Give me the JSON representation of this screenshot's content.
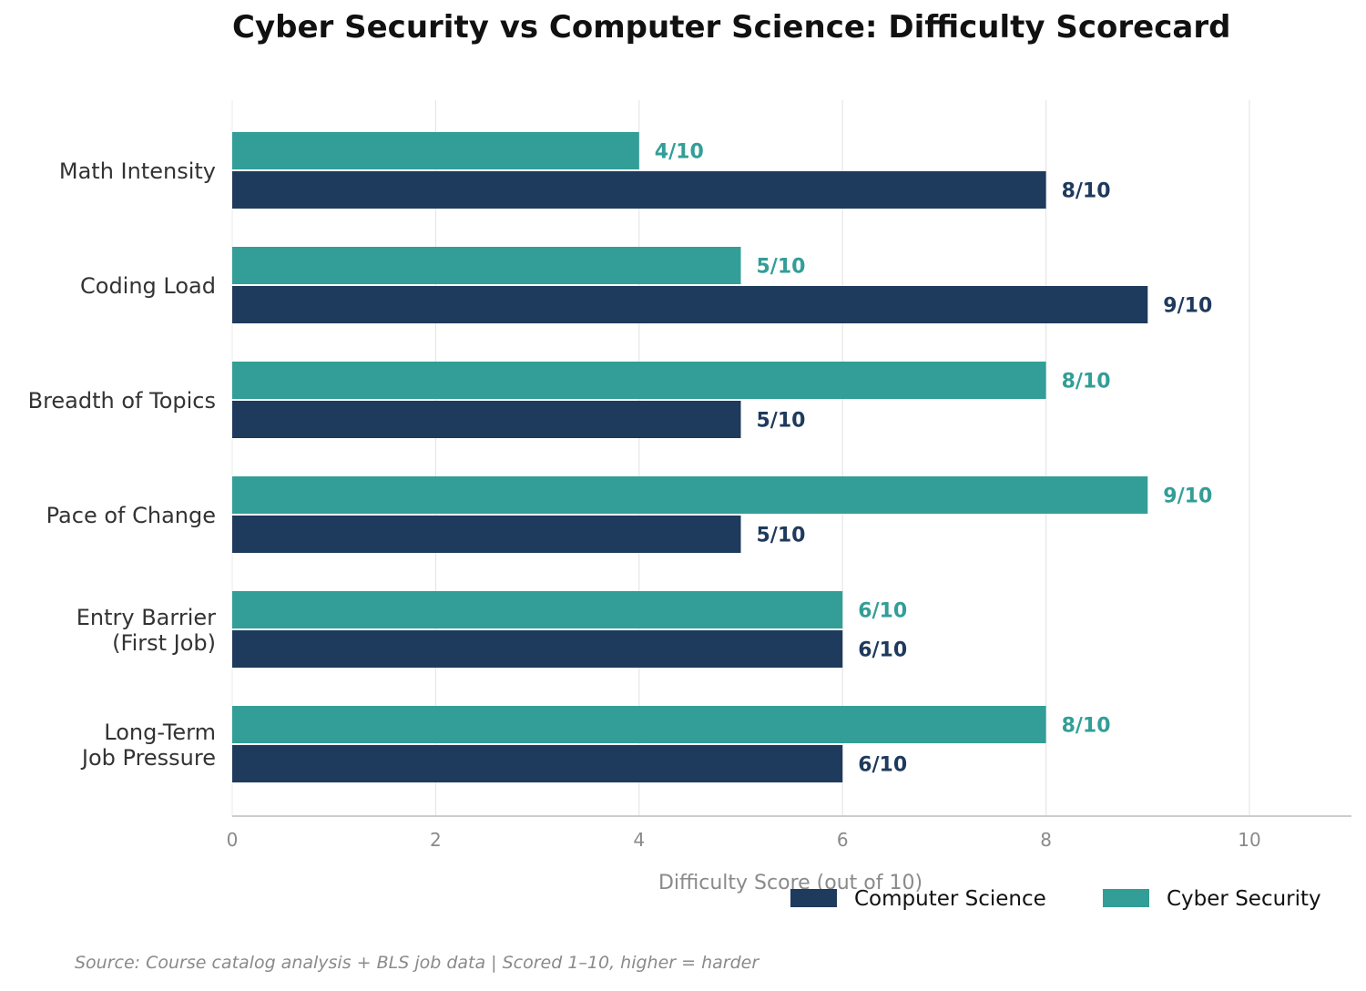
{
  "chart_data": {
    "type": "bar",
    "orientation": "horizontal",
    "title": "Cyber Security vs Computer Science: Difficulty Scorecard",
    "xlabel": "Difficulty Score (out of 10)",
    "ylabel": "",
    "xlim": [
      0,
      11
    ],
    "xticks": [
      0,
      2,
      4,
      6,
      8,
      10
    ],
    "grid": "vertical",
    "legend_position": "bottom-right",
    "categories": [
      [
        "Math Intensity"
      ],
      [
        "Coding Load"
      ],
      [
        "Breadth of Topics"
      ],
      [
        "Pace of Change"
      ],
      [
        "Entry Barrier",
        "(First Job)"
      ],
      [
        "Long-Term",
        "Job Pressure"
      ]
    ],
    "series": [
      {
        "name": "Computer Science",
        "color": "#1e3a5c",
        "values": [
          8,
          9,
          5,
          5,
          6,
          6
        ],
        "labels": [
          "8/10",
          "9/10",
          "5/10",
          "5/10",
          "6/10",
          "6/10"
        ]
      },
      {
        "name": "Cyber Security",
        "color": "#329e97",
        "values": [
          4,
          5,
          8,
          9,
          6,
          8
        ],
        "labels": [
          "4/10",
          "5/10",
          "8/10",
          "9/10",
          "6/10",
          "8/10"
        ]
      }
    ],
    "source": "Source: Course catalog analysis + BLS job data | Scored 1–10, higher = harder"
  }
}
